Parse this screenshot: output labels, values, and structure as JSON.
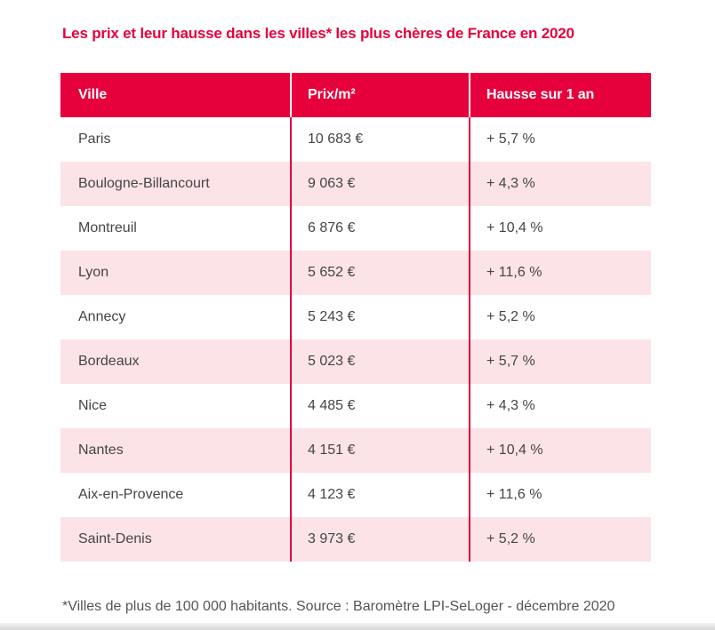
{
  "title": "Les prix et leur hausse dans les villes* les plus chères de France en 2020",
  "table": {
    "headers": [
      "Ville",
      "Prix/m²",
      "Hausse sur 1 an"
    ],
    "rows": [
      {
        "ville": "Paris",
        "prix": "10 683 €",
        "hausse": "+ 5,7 %"
      },
      {
        "ville": "Boulogne-Billancourt",
        "prix": "9 063 €",
        "hausse": "+ 4,3 %"
      },
      {
        "ville": "Montreuil",
        "prix": "6 876 €",
        "hausse": "+ 10,4 %"
      },
      {
        "ville": "Lyon",
        "prix": "5 652 €",
        "hausse": "+ 11,6 %"
      },
      {
        "ville": "Annecy",
        "prix": "5 243 €",
        "hausse": "+ 5,2 %"
      },
      {
        "ville": "Bordeaux",
        "prix": "5 023 €",
        "hausse": "+ 5,7 %"
      },
      {
        "ville": "Nice",
        "prix": "4 485 €",
        "hausse": "+ 4,3 %"
      },
      {
        "ville": "Nantes",
        "prix": "4 151 €",
        "hausse": "+ 10,4 %"
      },
      {
        "ville": "Aix-en-Provence",
        "prix": "4 123 €",
        "hausse": "+ 11,6 %"
      },
      {
        "ville": "Saint-Denis",
        "prix": "3 973 €",
        "hausse": "+ 5,2 %"
      }
    ]
  },
  "footnote": "*Villes de plus de 100 000 habitants. Source : Baromètre LPI-SeLoger - décembre 2020",
  "colors": {
    "brand_red": "#e6003c",
    "separator_red": "#dc0040",
    "row_pink": "#fce3e7",
    "cell_text": "#454545",
    "footer_text": "#545454"
  },
  "chart_data": {
    "type": "table",
    "title": "Les prix et leur hausse dans les villes* les plus chères de France en 2020",
    "columns": [
      "Ville",
      "Prix/m²",
      "Hausse sur 1 an"
    ],
    "rows": [
      [
        "Paris",
        "10 683 €",
        "+ 5,7 %"
      ],
      [
        "Boulogne-Billancourt",
        "9 063 €",
        "+ 4,3 %"
      ],
      [
        "Montreuil",
        "6 876 €",
        "+ 10,4 %"
      ],
      [
        "Lyon",
        "5 652 €",
        "+ 11,6 %"
      ],
      [
        "Annecy",
        "5 243 €",
        "+ 5,2 %"
      ],
      [
        "Bordeaux",
        "5 023 €",
        "+ 5,7 %"
      ],
      [
        "Nice",
        "4 485 €",
        "+ 4,3 %"
      ],
      [
        "Nantes",
        "4 151 €",
        "+ 10,4 %"
      ],
      [
        "Aix-en-Provence",
        "4 123 €",
        "+ 11,6 %"
      ],
      [
        "Saint-Denis",
        "3 973 €",
        "+ 5,2 %"
      ]
    ],
    "prix_eur_per_m2": [
      10683,
      9063,
      6876,
      5652,
      5243,
      5023,
      4485,
      4151,
      4123,
      3973
    ],
    "hausse_pct": [
      5.7,
      4.3,
      10.4,
      11.6,
      5.2,
      5.7,
      4.3,
      10.4,
      11.6,
      5.2
    ],
    "source": "Baromètre LPI-SeLoger - décembre 2020"
  }
}
